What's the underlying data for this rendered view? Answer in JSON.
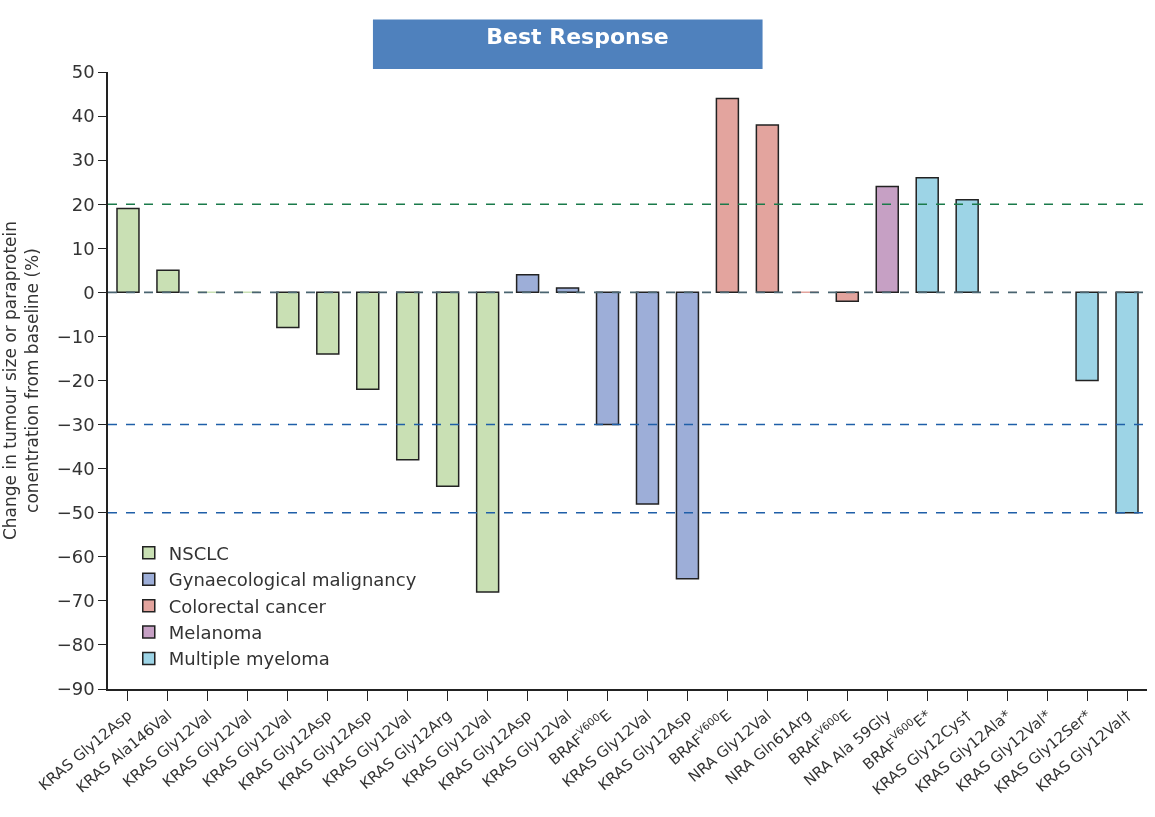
{
  "chart_data": {
    "type": "bar",
    "title": "Best Response",
    "ylabel": "Change in tumour size or paraprotein conentration from baseline (%)",
    "categories": [
      "KRAS Gly12Asp",
      "KRAS Ala146Val",
      "KRAS Gly12Val",
      "KRAS Gly12Val",
      "KRAS Gly12Val",
      "KRAS Gly12Asp",
      "KRAS Gly12Asp",
      "KRAS Gly12Val",
      "KRAS Gly12Arg",
      "KRAS Gly12Val",
      "KRAS Gly12Asp",
      "KRAS Gly12Val",
      "BRAF$^{V600}$E",
      "KRAS Gly12Val",
      "KRAS Gly12Asp",
      "BRAF$^{V600}$E",
      "NRA Gly12Val",
      "NRA Gln61Arg",
      "BRAF$^{V600}$E",
      "NRA Ala 59Gly",
      "BRAF$^{V600}$E*",
      "KRAS Gly12Cys†",
      "KRAS Gly12Ala*",
      "KRAS Gly12Val*",
      "KRAS Gly12Ser*",
      "KRAS Gly12Val†"
    ],
    "series": [
      {
        "name": "NSCLC",
        "color": "#c9e0b4",
        "values": [
          19,
          5,
          0,
          0,
          -8,
          -14,
          -22,
          -38,
          -44,
          -68,
          null,
          null,
          null,
          null,
          null,
          null,
          null,
          null,
          null,
          null,
          null,
          null,
          null,
          null,
          null,
          null
        ]
      },
      {
        "name": "Gynaecological malignancy",
        "color": "#9daed8",
        "values": [
          null,
          null,
          null,
          null,
          null,
          null,
          null,
          null,
          null,
          null,
          4,
          1,
          -30,
          -48,
          -65,
          null,
          null,
          null,
          null,
          null,
          null,
          null,
          null,
          null,
          null,
          null
        ]
      },
      {
        "name": "Colorectal cancer",
        "color": "#e3a49e",
        "values": [
          null,
          null,
          null,
          null,
          null,
          null,
          null,
          null,
          null,
          null,
          null,
          null,
          null,
          null,
          null,
          44,
          38,
          0,
          -2,
          null,
          null,
          null,
          null,
          null,
          null,
          null
        ]
      },
      {
        "name": "Melanoma",
        "color": "#c6a0c4",
        "values": [
          null,
          null,
          null,
          null,
          null,
          null,
          null,
          null,
          null,
          null,
          null,
          null,
          null,
          null,
          null,
          null,
          null,
          null,
          null,
          24,
          null,
          null,
          null,
          null,
          null,
          null
        ]
      },
      {
        "name": "Multiple myeloma",
        "color": "#9dd4e6",
        "values": [
          null,
          null,
          null,
          null,
          null,
          null,
          null,
          null,
          null,
          null,
          null,
          null,
          null,
          null,
          null,
          null,
          null,
          null,
          null,
          null,
          26,
          21,
          null,
          null,
          -20,
          -50
        ]
      }
    ],
    "ylim": [
      -90,
      50
    ],
    "yticks": [
      -90,
      -80,
      -70,
      -60,
      -50,
      -40,
      -30,
      -20,
      -10,
      0,
      10,
      20,
      30,
      40,
      50
    ],
    "ref_lines": [
      {
        "axis": "y",
        "value": 20,
        "color": "#1a7a4a",
        "line_style": "dashed"
      },
      {
        "axis": "y",
        "value": 0,
        "color": "#4a6470",
        "line_style": "dashed"
      },
      {
        "axis": "y",
        "value": -30,
        "color": "#1f5fa8",
        "line_style": "dashed"
      },
      {
        "axis": "y",
        "value": -50,
        "color": "#1f5fa8",
        "line_style": "dashed"
      }
    ],
    "legend": "bottom left"
  }
}
